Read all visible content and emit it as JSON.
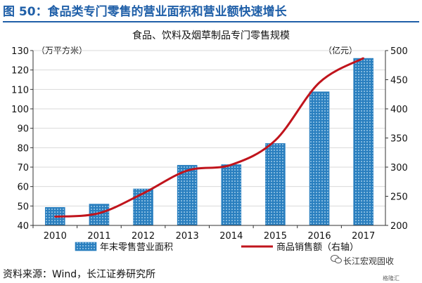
{
  "figure_title": "图 50：食品类专门零售的营业面积和营业额快速增长",
  "source": "资料来源：Wind，长江证券研究所",
  "watermark": "长江宏观固收",
  "watermark_small": "格隆汇",
  "colors": {
    "bar": "#2a7fbf",
    "bar_dots": "#bfe0f5",
    "line": "#c0141c",
    "title": "#1f5fa8",
    "grid": "#d9d9d9"
  },
  "chart_data": {
    "type": "bar",
    "title": "食品、饮料及烟草制品专门零售规模",
    "categories": [
      "2010",
      "2011",
      "2012",
      "2013",
      "2014",
      "2015",
      "2016",
      "2017"
    ],
    "y_left_unit": "（万平方米）",
    "y_right_unit": "（亿元）",
    "ylim_left": [
      40,
      130
    ],
    "ylim_right": [
      200,
      500
    ],
    "yticks_left": [
      "40",
      "50",
      "60",
      "70",
      "80",
      "90",
      "100",
      "110",
      "120",
      "130"
    ],
    "yticks_right": [
      "200",
      "250",
      "300",
      "350",
      "400",
      "450",
      "500"
    ],
    "grid": true,
    "legend_position": "bottom",
    "series": [
      {
        "name": "年末零售营业面积",
        "kind": "bar",
        "axis": "left",
        "values": [
          49.3,
          51.0,
          58.8,
          71.0,
          71.3,
          82.2,
          108.8,
          126.0
        ]
      },
      {
        "name": "商品销售额（右轴）",
        "kind": "line",
        "axis": "right",
        "values": [
          215,
          221,
          255,
          294,
          304,
          346,
          445,
          487
        ]
      }
    ]
  }
}
